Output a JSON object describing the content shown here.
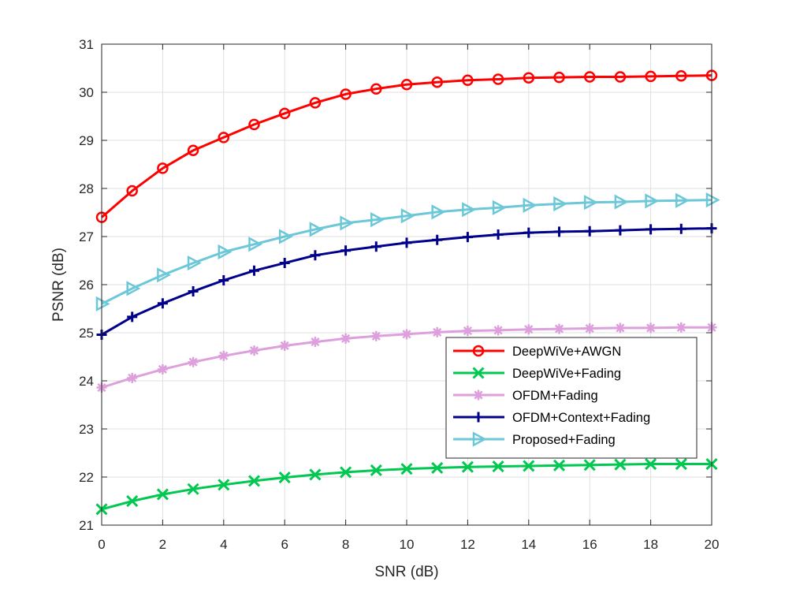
{
  "chart_data": {
    "type": "line",
    "title": "",
    "xlabel": "SNR (dB)",
    "ylabel": "PSNR (dB)",
    "xlim": [
      0,
      20
    ],
    "ylim": [
      21,
      31
    ],
    "xticks": [
      0,
      2,
      4,
      6,
      8,
      10,
      12,
      14,
      16,
      18,
      20
    ],
    "yticks": [
      21,
      22,
      23,
      24,
      25,
      26,
      27,
      28,
      29,
      30,
      31
    ],
    "grid": true,
    "legend_position": "inside-right",
    "x": [
      0,
      1,
      2,
      3,
      4,
      5,
      6,
      7,
      8,
      9,
      10,
      11,
      12,
      13,
      14,
      15,
      16,
      17,
      18,
      19,
      20
    ],
    "series": [
      {
        "name": "DeepWiVe+AWGN",
        "color": "#ff0000",
        "marker": "circle",
        "values": [
          27.4,
          27.95,
          28.42,
          28.79,
          29.06,
          29.33,
          29.56,
          29.78,
          29.96,
          30.07,
          30.16,
          30.21,
          30.25,
          30.27,
          30.3,
          30.31,
          30.32,
          30.32,
          30.33,
          30.34,
          30.35
        ]
      },
      {
        "name": "DeepWiVe+Fading",
        "color": "#00c850",
        "marker": "x",
        "values": [
          21.33,
          21.5,
          21.64,
          21.75,
          21.84,
          21.92,
          21.99,
          22.05,
          22.1,
          22.14,
          22.17,
          22.19,
          22.21,
          22.22,
          22.23,
          22.24,
          22.25,
          22.26,
          22.27,
          22.27,
          22.27
        ]
      },
      {
        "name": "OFDM+Fading",
        "color": "#dda0dd",
        "marker": "asterisk",
        "values": [
          23.86,
          24.06,
          24.24,
          24.39,
          24.52,
          24.63,
          24.73,
          24.81,
          24.88,
          24.93,
          24.97,
          25.01,
          25.04,
          25.05,
          25.07,
          25.08,
          25.09,
          25.1,
          25.1,
          25.11,
          25.11
        ]
      },
      {
        "name": "OFDM+Context+Fading",
        "color": "#00008b",
        "marker": "plus",
        "values": [
          24.96,
          25.33,
          25.61,
          25.86,
          26.09,
          26.29,
          26.45,
          26.61,
          26.71,
          26.79,
          26.87,
          26.93,
          26.99,
          27.04,
          27.08,
          27.1,
          27.11,
          27.13,
          27.15,
          27.16,
          27.17
        ]
      },
      {
        "name": "Proposed+Fading",
        "color": "#6cc8d8",
        "marker": "triangle-right",
        "values": [
          25.6,
          25.92,
          26.2,
          26.45,
          26.68,
          26.84,
          27.0,
          27.15,
          27.28,
          27.35,
          27.43,
          27.51,
          27.56,
          27.6,
          27.65,
          27.68,
          27.71,
          27.72,
          27.74,
          27.75,
          27.76
        ]
      }
    ]
  }
}
